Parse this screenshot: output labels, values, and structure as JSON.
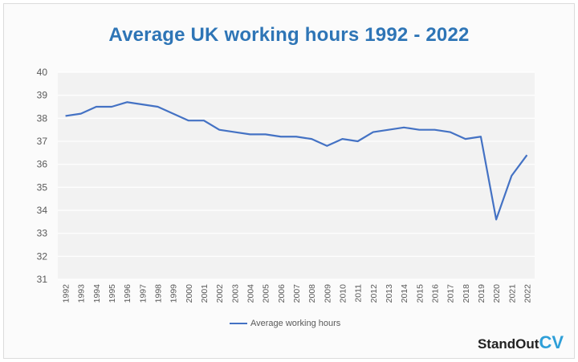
{
  "chart_data": {
    "type": "line",
    "title": "Average UK working hours 1992 - 2022",
    "xlabel": "",
    "ylabel": "",
    "x": [
      "1992",
      "1993",
      "1994",
      "1995",
      "1996",
      "1997",
      "1998",
      "1999",
      "2000",
      "2001",
      "2002",
      "2003",
      "2004",
      "2005",
      "2006",
      "2007",
      "2008",
      "2009",
      "2010",
      "2011",
      "2012",
      "2013",
      "2014",
      "2015",
      "2016",
      "2017",
      "2018",
      "2019",
      "2020",
      "2021",
      "2022"
    ],
    "series": [
      {
        "name": "Average working hours",
        "values": [
          38.1,
          38.2,
          38.5,
          38.5,
          38.7,
          38.6,
          38.5,
          38.2,
          37.9,
          37.9,
          37.5,
          37.4,
          37.3,
          37.3,
          37.2,
          37.2,
          37.1,
          36.8,
          37.1,
          37.0,
          37.4,
          37.5,
          37.6,
          37.5,
          37.5,
          37.4,
          37.1,
          37.2,
          33.6,
          35.5,
          36.4
        ]
      }
    ],
    "ylim": [
      31,
      40
    ],
    "yticks": [
      "31",
      "32",
      "33",
      "34",
      "35",
      "36",
      "37",
      "38",
      "39",
      "40"
    ],
    "grid": true,
    "legend_position": "bottom",
    "colors": {
      "line": "#4472c4",
      "title": "#2e75b6",
      "plot_bg": "#f2f2f2",
      "grid": "#ffffff"
    }
  },
  "legend": {
    "label": "Average working hours"
  },
  "brand": {
    "name": "StandOut",
    "accent": "CV"
  }
}
